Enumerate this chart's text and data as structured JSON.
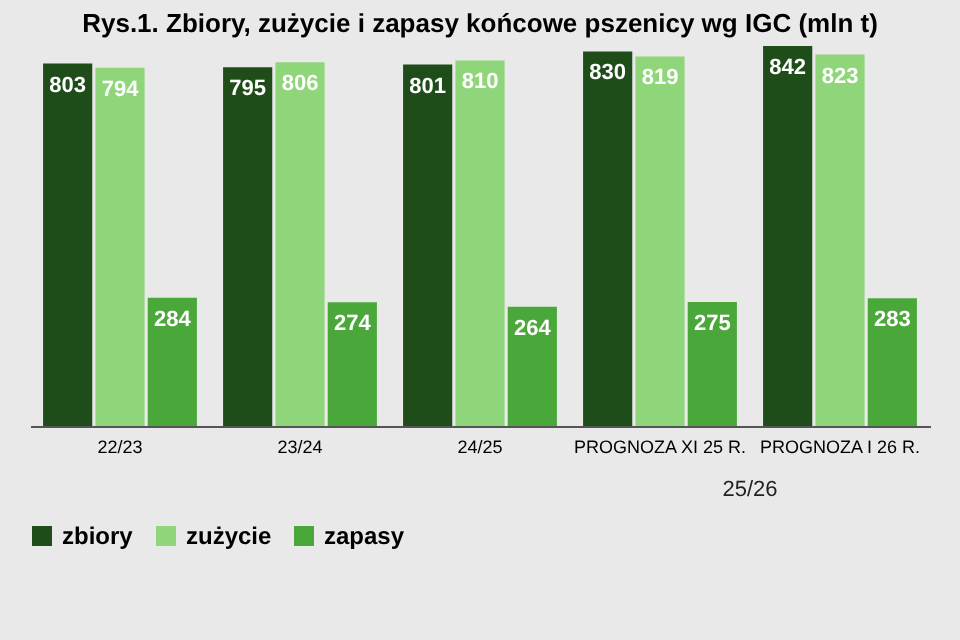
{
  "chart_data": {
    "type": "bar",
    "title": "Rys.1. Zbiory, zużycie i zapasy końcowe pszenicy wg IGC (mln t)",
    "categories": [
      "22/23",
      "23/24",
      "24/25",
      "PROGNOZA XI 25 R.",
      "PROGNOZA I 26 R."
    ],
    "series": [
      {
        "name": "zbiory",
        "color": "#1e4d1a",
        "values": [
          803,
          795,
          801,
          830,
          842
        ]
      },
      {
        "name": "zużycie",
        "color": "#8fd67a",
        "values": [
          794,
          806,
          810,
          819,
          823
        ]
      },
      {
        "name": "zapasy",
        "color": "#4aa83a",
        "values": [
          284,
          274,
          264,
          275,
          283
        ]
      }
    ],
    "annotations": [
      "25/26"
    ],
    "data_labels": true,
    "legend": "bottom"
  }
}
